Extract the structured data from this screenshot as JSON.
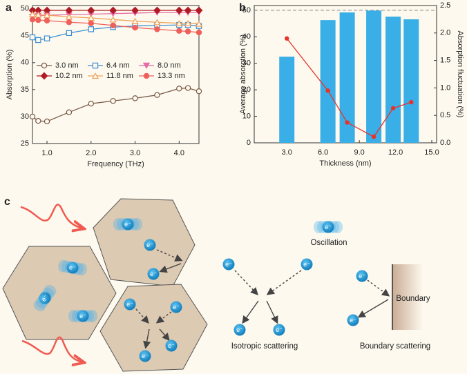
{
  "chart_data": [
    {
      "type": "line",
      "panel_label": "a",
      "xlabel": "Frequency (THz)",
      "ylabel": "Absorption (%)",
      "x": [
        0.67,
        0.8,
        1.0,
        1.5,
        2.0,
        2.5,
        3.0,
        3.5,
        4.0,
        4.2,
        4.45
      ],
      "series": [
        {
          "name": "3.0 nm",
          "color": "#7a5a48",
          "marker": "circle-open",
          "values": [
            30.0,
            29.2,
            29.1,
            30.8,
            32.4,
            32.9,
            33.4,
            34.0,
            35.2,
            35.3,
            34.7
          ]
        },
        {
          "name": "6.4 nm",
          "color": "#3b8fd4",
          "marker": "square-open",
          "values": [
            44.7,
            44.2,
            44.5,
            45.5,
            46.2,
            46.6,
            46.8,
            46.9,
            47.0,
            47.0,
            46.8
          ]
        },
        {
          "name": "8.0 nm",
          "color": "#e86aa6",
          "marker": "triangle-down",
          "values": [
            48.5,
            48.7,
            48.8,
            48.9,
            49.0,
            49.1,
            49.2,
            49.3,
            49.3,
            49.3,
            49.3
          ]
        },
        {
          "name": "10.2 nm",
          "color": "#b01c25",
          "marker": "diamond",
          "values": [
            49.7,
            49.7,
            49.7,
            49.7,
            49.7,
            49.7,
            49.7,
            49.7,
            49.7,
            49.7,
            49.7
          ]
        },
        {
          "name": "11.8 nm",
          "color": "#f0a25a",
          "marker": "triangle-up-open",
          "values": [
            49.0,
            48.9,
            48.8,
            48.5,
            48.3,
            48.0,
            47.7,
            47.5,
            47.3,
            47.3,
            47.2
          ]
        },
        {
          "name": "13.3 nm",
          "color": "#f0605a",
          "marker": "circle",
          "values": [
            48.0,
            47.9,
            47.8,
            47.5,
            47.3,
            46.9,
            46.5,
            46.2,
            45.9,
            45.8,
            45.6
          ]
        }
      ],
      "xlim": [
        0.67,
        4.45
      ],
      "ylim": [
        25,
        50.6
      ],
      "xticks": [
        {
          "value": 1,
          "label": "1.0"
        },
        {
          "value": 2,
          "label": "2.0"
        },
        {
          "value": 3,
          "label": "3.0"
        },
        {
          "value": 4,
          "label": "4.0"
        }
      ],
      "yticks": [
        25,
        30,
        35,
        40,
        45,
        50
      ],
      "legend": "center-left"
    },
    {
      "type": "bar",
      "panel_label": "b",
      "xlabel": "Thickness (nm)",
      "ylabel": "Average absorption (%)",
      "y2label": "Absorption fluctuation (%)",
      "x": [
        3.0,
        6.4,
        8.0,
        10.2,
        11.8,
        13.3
      ],
      "series": [
        {
          "color": "#3aaee6",
          "values": [
            32.5,
            46.3,
            49.2,
            49.9,
            47.6,
            46.6
          ]
        },
        {
          "color": "#e8322c",
          "type": "line",
          "axis": "y2",
          "values": [
            1.9,
            0.95,
            0.37,
            0.11,
            0.63,
            0.74
          ]
        }
      ],
      "hline": 50,
      "xlim": [
        0.3,
        15.4
      ],
      "ylim": [
        0,
        51.8
      ],
      "y2lim": [
        0,
        2.5
      ],
      "xticks": [
        {
          "value": 3,
          "label": "3.0"
        },
        {
          "value": 6,
          "label": "6.0"
        },
        {
          "value": 9,
          "label": "9.0"
        },
        {
          "value": 12,
          "label": "12.0"
        },
        {
          "value": 15,
          "label": "15.0"
        }
      ],
      "yticks": [
        0,
        10,
        20,
        30,
        40,
        50
      ],
      "y2ticks": [
        {
          "value": 0,
          "label": "0.0"
        },
        0.5,
        {
          "value": 1,
          "label": "1.0"
        },
        1.5,
        {
          "value": 2,
          "label": "2.0"
        },
        2.5
      ]
    }
  ],
  "diagram": {
    "panel_label": "c",
    "electron_label": "e⁻",
    "oscillation": "Oscillation",
    "isotropic": "Isotropic scattering",
    "boundary_scattering": "Boundary scattering",
    "boundary": "Boundary"
  }
}
